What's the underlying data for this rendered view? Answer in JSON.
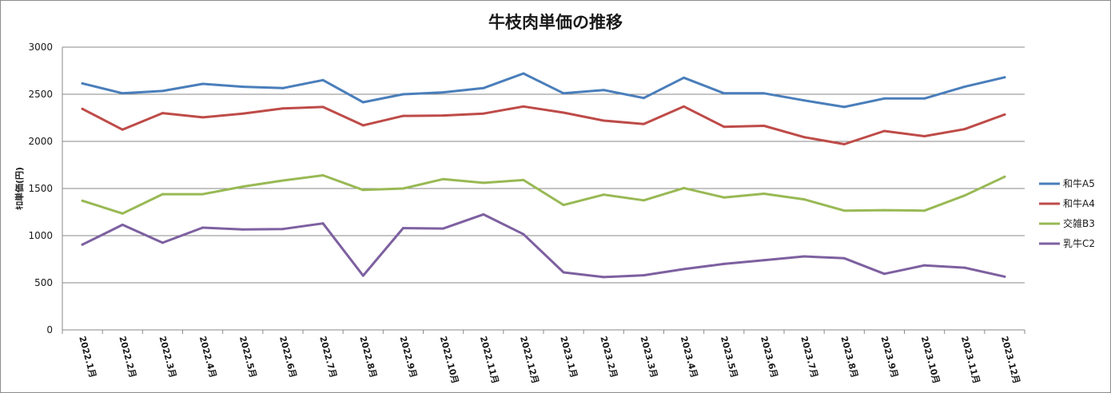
{
  "chart_data": {
    "type": "line",
    "title": "牛枝肉単価の推移",
    "ylabel": "ｷﾛ単価(円)",
    "xlabel": "",
    "ylim": [
      0,
      3000
    ],
    "yticks": [
      0,
      500,
      1000,
      1500,
      2000,
      2500,
      3000
    ],
    "grid": true,
    "legend_position": "right",
    "categories": [
      "2022.1月",
      "2022.2月",
      "2022.3月",
      "2022.4月",
      "2022.5月",
      "2022.6月",
      "2022.7月",
      "2022.8月",
      "2022.9月",
      "2022.10月",
      "2022.11月",
      "2022.12月",
      "2023.1月",
      "2023.2月",
      "2023.3月",
      "2023.4月",
      "2023.5月",
      "2023.6月",
      "2023.7月",
      "2023.8月",
      "2023.9月",
      "2023.10月",
      "2023.11月",
      "2023.12月"
    ],
    "series": [
      {
        "name": "和牛A5",
        "color": "#4a7ebb",
        "values": [
          2615,
          2510,
          2535,
          2610,
          2580,
          2565,
          2650,
          2415,
          2500,
          2520,
          2565,
          2720,
          2510,
          2545,
          2460,
          2675,
          2510,
          2510,
          2435,
          2365,
          2455,
          2455,
          2580,
          2680
        ]
      },
      {
        "name": "和牛A4",
        "color": "#be4b48",
        "values": [
          2345,
          2125,
          2300,
          2255,
          2295,
          2350,
          2365,
          2170,
          2270,
          2275,
          2295,
          2370,
          2305,
          2220,
          2185,
          2370,
          2155,
          2165,
          2045,
          1970,
          2110,
          2055,
          2130,
          2285
        ]
      },
      {
        "name": "交雑B3",
        "color": "#98b954",
        "values": [
          1370,
          1235,
          1440,
          1440,
          1520,
          1585,
          1640,
          1485,
          1500,
          1600,
          1560,
          1590,
          1325,
          1435,
          1375,
          1505,
          1405,
          1445,
          1385,
          1265,
          1270,
          1265,
          1425,
          1625
        ]
      },
      {
        "name": "乳牛C2",
        "color": "#7d60a0",
        "values": [
          905,
          1115,
          925,
          1085,
          1065,
          1070,
          1130,
          575,
          1080,
          1075,
          1225,
          1015,
          610,
          560,
          580,
          645,
          700,
          740,
          780,
          760,
          595,
          685,
          660,
          565
        ]
      }
    ]
  }
}
